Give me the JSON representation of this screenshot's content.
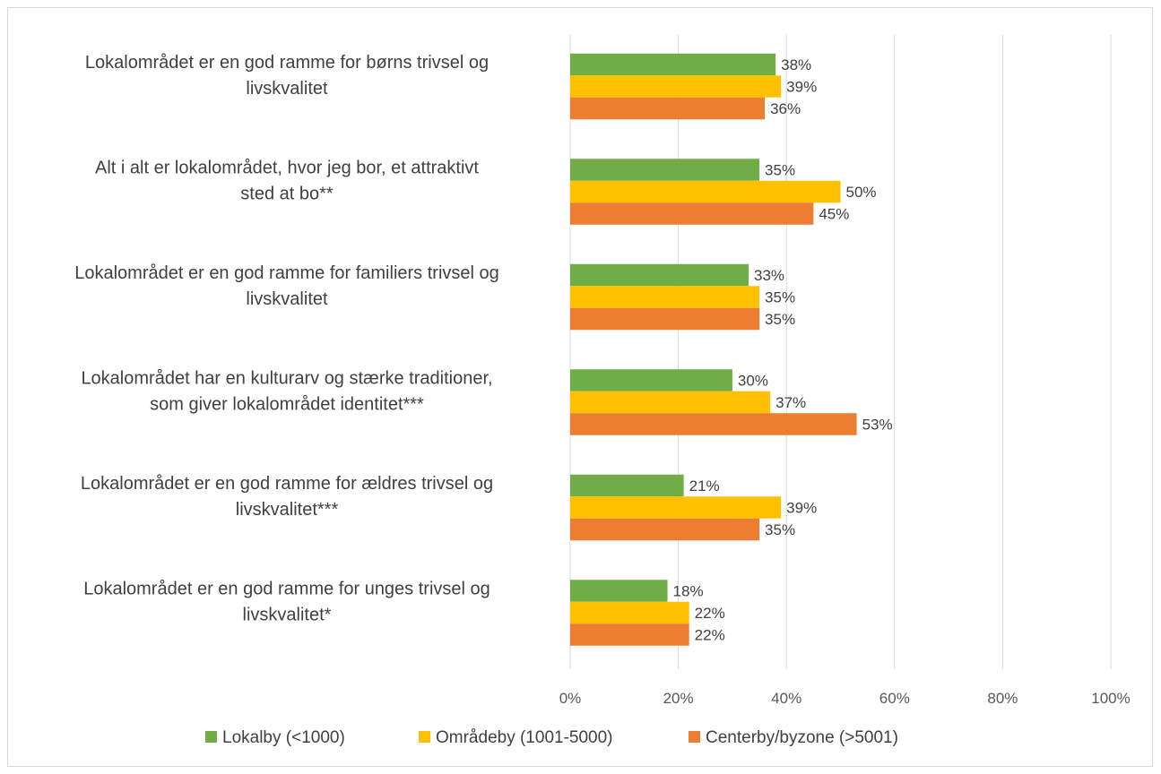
{
  "chart_data": {
    "type": "bar",
    "orientation": "horizontal",
    "categories": [
      [
        "Lokalområdet er en god ramme for børns trivsel og",
        "livskvalitet"
      ],
      [
        "Alt i alt er lokalområdet, hvor jeg bor, et attraktivt",
        "sted at bo**"
      ],
      [
        "Lokalområdet er en god ramme for familiers trivsel og",
        "livskvalitet"
      ],
      [
        "Lokalområdet har en kulturarv og stærke traditioner,",
        "som giver lokalområdet identitet***"
      ],
      [
        "Lokalområdet er en god ramme for ældres trivsel og",
        "livskvalitet***"
      ],
      [
        "Lokalområdet er en god ramme for unges trivsel og",
        "livskvalitet*"
      ]
    ],
    "series": [
      {
        "name": "Lokalby (<1000)",
        "color": "#70ad47",
        "values": [
          38,
          35,
          33,
          30,
          21,
          18
        ],
        "labels": [
          "38%",
          "35%",
          "33%",
          "30%",
          "21%",
          "18%"
        ]
      },
      {
        "name": "Områdeby (1001-5000)",
        "color": "#ffc000",
        "values": [
          39,
          50,
          35,
          37,
          39,
          22
        ],
        "labels": [
          "39%",
          "50%",
          "35%",
          "37%",
          "39%",
          "22%"
        ]
      },
      {
        "name": "Centerby/byzone (>5001)",
        "color": "#ed7d31",
        "values": [
          36,
          45,
          35,
          53,
          35,
          22
        ],
        "labels": [
          "36%",
          "45%",
          "35%",
          "53%",
          "35%",
          "22%"
        ]
      }
    ],
    "xlim": [
      0,
      100
    ],
    "xticks": [
      0,
      20,
      40,
      60,
      80,
      100
    ],
    "xtick_labels": [
      "0%",
      "20%",
      "40%",
      "60%",
      "80%",
      "100%"
    ],
    "grid": true,
    "gridline_color": "#d9d9d9",
    "legend_position": "bottom",
    "title": "",
    "xlabel": "",
    "ylabel": ""
  }
}
